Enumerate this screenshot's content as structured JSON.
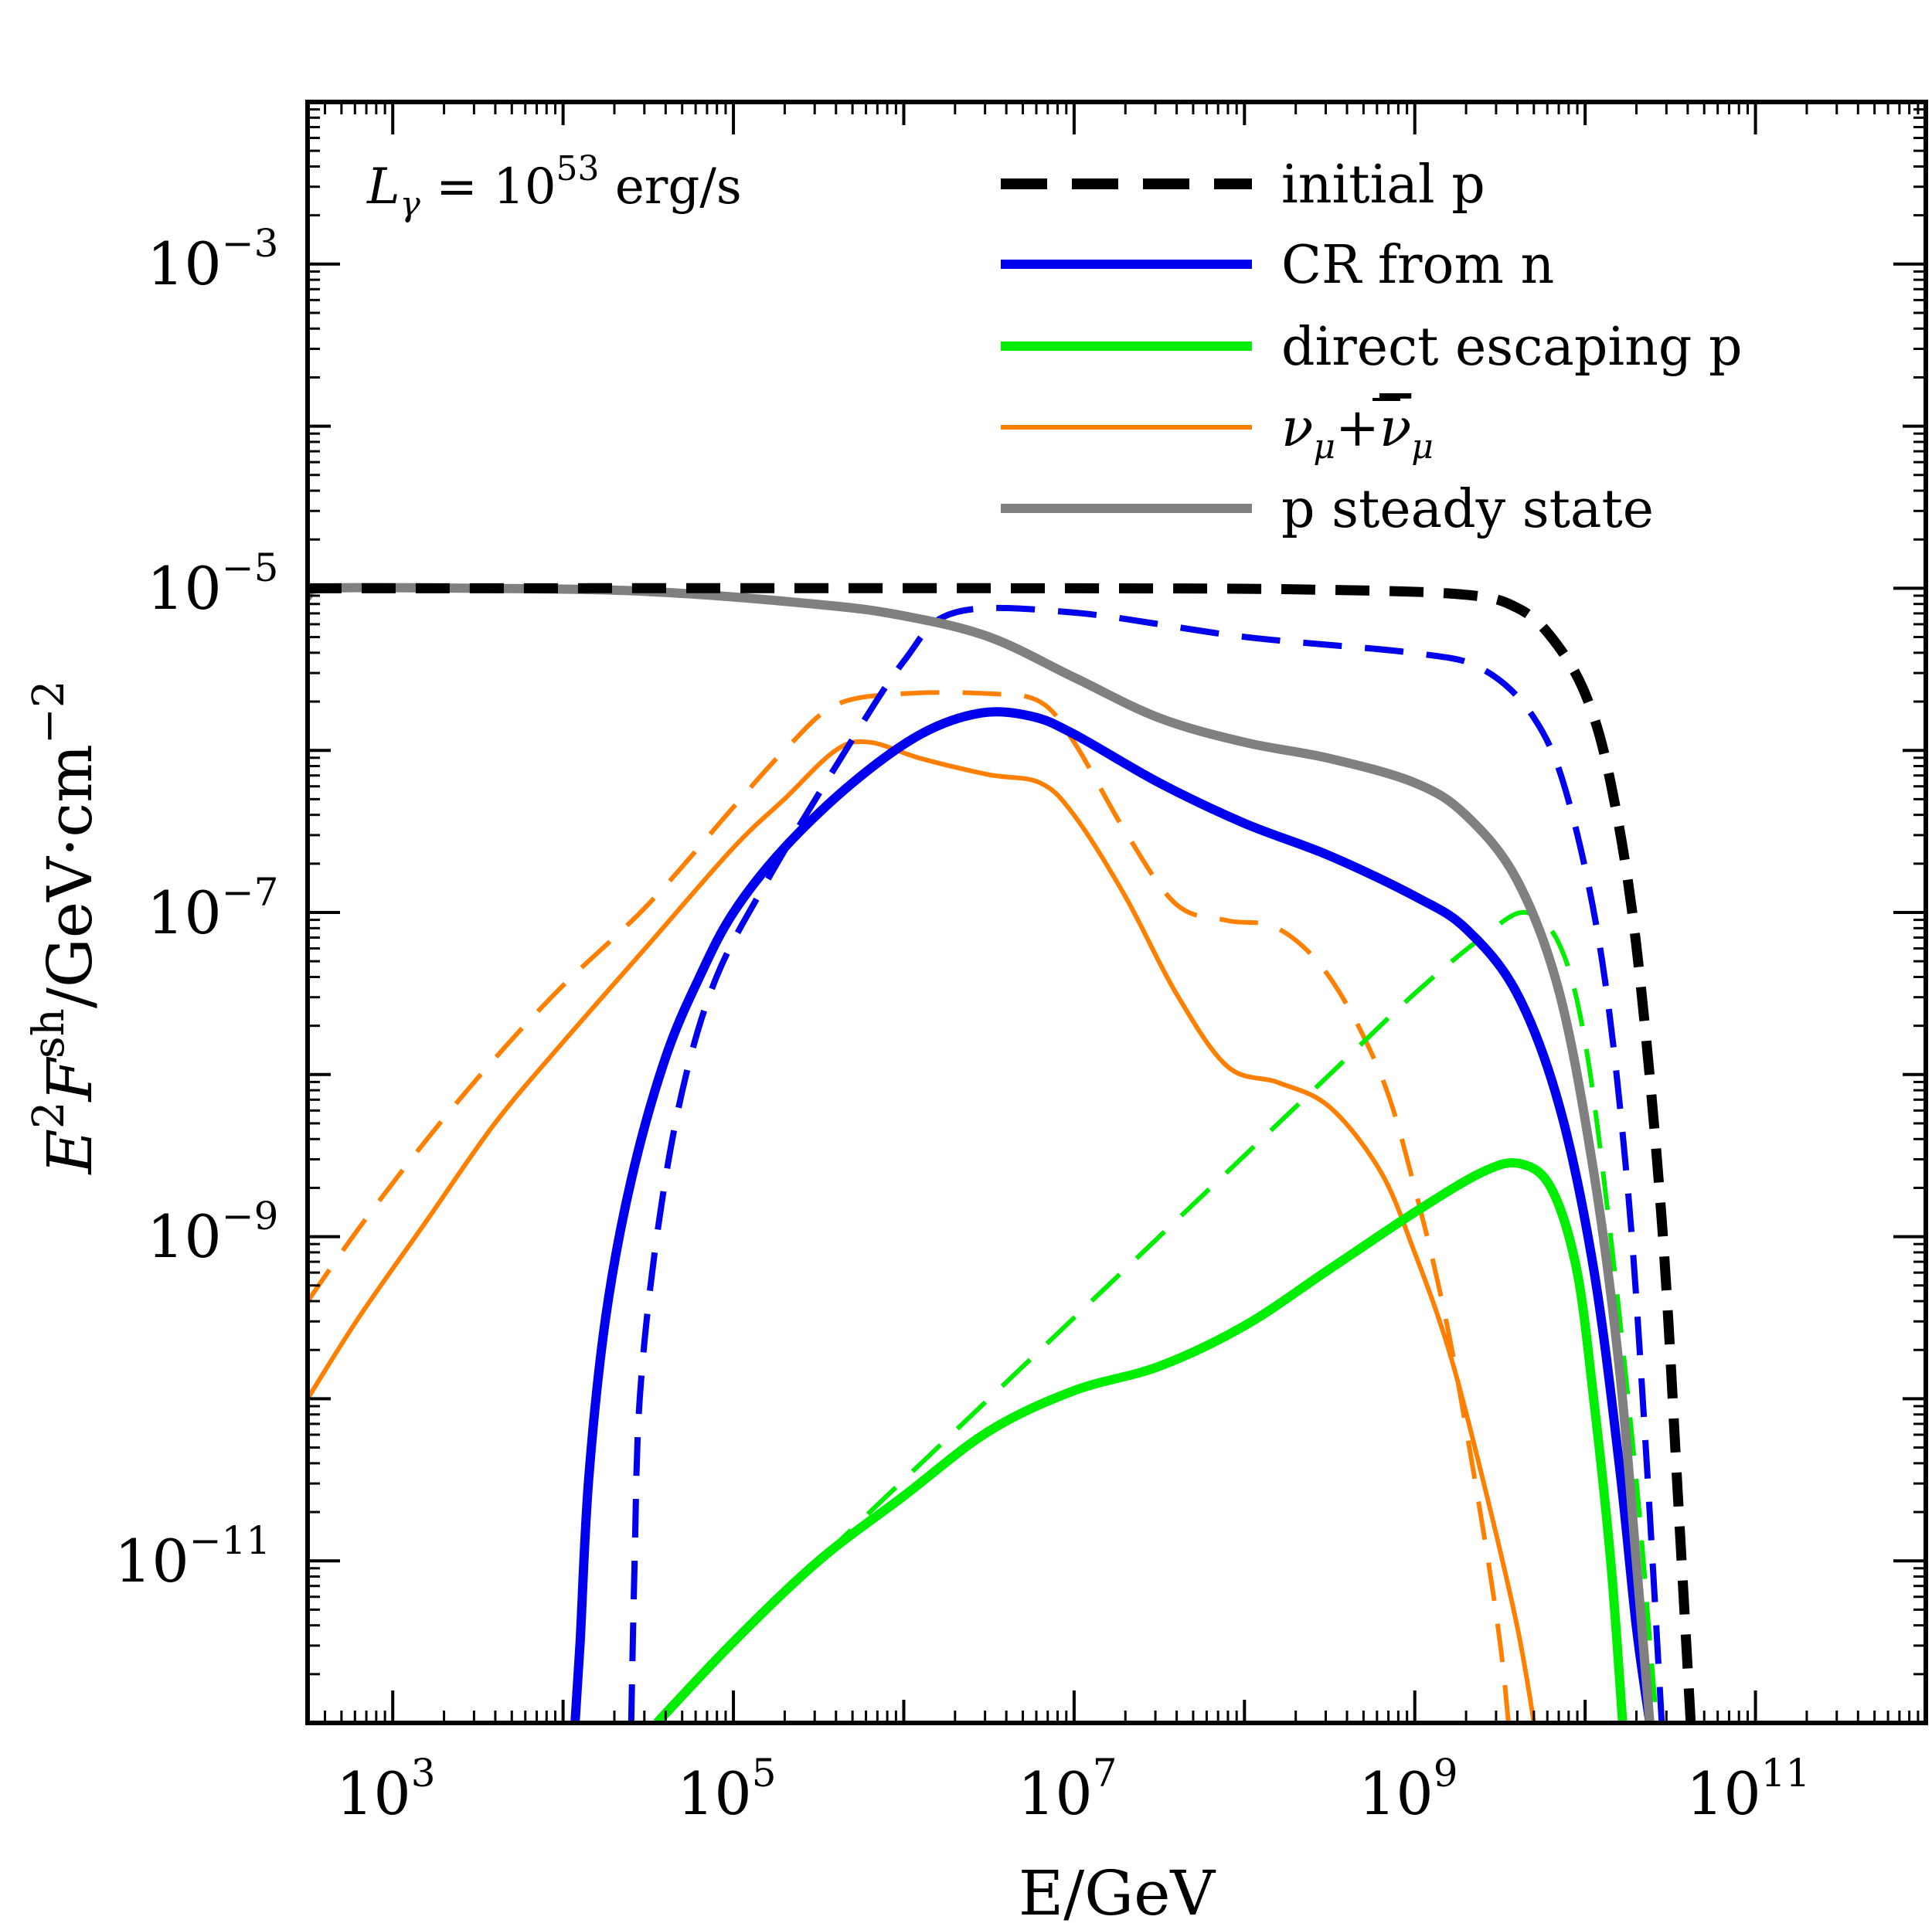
{
  "chart_data": {
    "type": "line",
    "title": "",
    "annotation": {
      "prefix": "L",
      "sub": "γ",
      "mid": " = 10",
      "sup": "53",
      "suffix": " erg/s"
    },
    "xlabel": "E/GeV",
    "ylabel": {
      "a": "E",
      "a_sup": "2",
      "b": "F",
      "b_sup": "sh",
      "c": "/GeV·cm",
      "c_sup": "−2"
    },
    "xscale": "log",
    "yscale": "log",
    "xlim_log10": [
      2.5,
      12.0
    ],
    "ylim_log10": [
      -12.0,
      -2.0
    ],
    "x_ticks": [
      {
        "base": "10",
        "exp": "3",
        "log": 3
      },
      {
        "base": "10",
        "exp": "5",
        "log": 5
      },
      {
        "base": "10",
        "exp": "7",
        "log": 7
      },
      {
        "base": "10",
        "exp": "9",
        "log": 9
      },
      {
        "base": "10",
        "exp": "11",
        "log": 11
      }
    ],
    "y_ticks": [
      {
        "base": "10",
        "exp": "−3",
        "log": -3
      },
      {
        "base": "10",
        "exp": "−5",
        "log": -5
      },
      {
        "base": "10",
        "exp": "−7",
        "log": -7
      },
      {
        "base": "10",
        "exp": "−9",
        "log": -9
      },
      {
        "base": "10",
        "exp": "−11",
        "log": -11
      }
    ],
    "legend_position": "top-right",
    "legend": [
      {
        "label": "initial p",
        "color": "#000000",
        "style": "dashed",
        "width": 14
      },
      {
        "label": "CR from n",
        "color": "#0000ee",
        "style": "solid",
        "width": 12
      },
      {
        "label": "direct escaping p",
        "color": "#00ee00",
        "style": "solid",
        "width": 12
      },
      {
        "label_nu1": "ν",
        "label_sub1": "μ",
        "label_plus": "+",
        "label_nu2": "ν",
        "label_sub2": "μ",
        "color": "#ff8000",
        "style": "solid",
        "width": 6
      },
      {
        "label": "p steady state",
        "color": "#808080",
        "style": "solid",
        "width": 12
      }
    ],
    "series": [
      {
        "name": "initial p",
        "color": "#000000",
        "dash": "44,26",
        "width": 13,
        "points": [
          [
            2.5,
            -5.0
          ],
          [
            7.0,
            -5.0
          ],
          [
            8.5,
            -5.01
          ],
          [
            9.3,
            -5.04
          ],
          [
            9.6,
            -5.12
          ],
          [
            9.8,
            -5.3
          ],
          [
            10.0,
            -5.65
          ],
          [
            10.15,
            -6.2
          ],
          [
            10.3,
            -7.2
          ],
          [
            10.45,
            -8.9
          ],
          [
            10.55,
            -10.7
          ],
          [
            10.62,
            -12.0
          ]
        ]
      },
      {
        "name": "CR from n",
        "color": "#0000ee",
        "dash": "",
        "width": 12,
        "points": [
          [
            4.07,
            -12.0
          ],
          [
            4.1,
            -11.5
          ],
          [
            4.15,
            -10.5
          ],
          [
            4.25,
            -9.5
          ],
          [
            4.4,
            -8.65
          ],
          [
            4.6,
            -7.9
          ],
          [
            4.8,
            -7.4
          ],
          [
            5.0,
            -7.0
          ],
          [
            5.3,
            -6.6
          ],
          [
            5.7,
            -6.2
          ],
          [
            6.1,
            -5.9
          ],
          [
            6.45,
            -5.77
          ],
          [
            6.75,
            -5.79
          ],
          [
            7.0,
            -5.9
          ],
          [
            7.5,
            -6.2
          ],
          [
            8.0,
            -6.45
          ],
          [
            8.5,
            -6.65
          ],
          [
            9.0,
            -6.9
          ],
          [
            9.3,
            -7.1
          ],
          [
            9.6,
            -7.5
          ],
          [
            9.85,
            -8.2
          ],
          [
            10.05,
            -9.2
          ],
          [
            10.2,
            -10.4
          ],
          [
            10.3,
            -11.4
          ],
          [
            10.38,
            -12.0
          ]
        ]
      },
      {
        "name": "CR from n (dashed)",
        "color": "#0000ee",
        "dash": "50,30",
        "width": 8,
        "points": [
          [
            4.4,
            -12.0
          ],
          [
            4.42,
            -11.0
          ],
          [
            4.45,
            -10.0
          ],
          [
            4.55,
            -9.0
          ],
          [
            4.7,
            -8.1
          ],
          [
            4.9,
            -7.4
          ],
          [
            5.2,
            -6.8
          ],
          [
            5.6,
            -6.1
          ],
          [
            6.0,
            -5.45
          ],
          [
            6.3,
            -5.15
          ],
          [
            7.0,
            -5.15
          ],
          [
            8.0,
            -5.3
          ],
          [
            9.0,
            -5.4
          ],
          [
            9.4,
            -5.5
          ],
          [
            9.7,
            -5.8
          ],
          [
            9.9,
            -6.3
          ],
          [
            10.1,
            -7.3
          ],
          [
            10.25,
            -8.7
          ],
          [
            10.35,
            -10.2
          ],
          [
            10.45,
            -12.0
          ]
        ]
      },
      {
        "name": "direct escaping p",
        "color": "#00ee00",
        "dash": "",
        "width": 12,
        "points": [
          [
            4.55,
            -12.0
          ],
          [
            5.0,
            -11.5
          ],
          [
            5.5,
            -11.0
          ],
          [
            6.0,
            -10.6
          ],
          [
            6.5,
            -10.2
          ],
          [
            7.0,
            -9.95
          ],
          [
            7.5,
            -9.8
          ],
          [
            8.0,
            -9.55
          ],
          [
            8.5,
            -9.2
          ],
          [
            9.0,
            -8.85
          ],
          [
            9.4,
            -8.6
          ],
          [
            9.62,
            -8.55
          ],
          [
            9.8,
            -8.7
          ],
          [
            9.95,
            -9.2
          ],
          [
            10.05,
            -10.0
          ],
          [
            10.15,
            -11.0
          ],
          [
            10.22,
            -12.0
          ]
        ]
      },
      {
        "name": "direct escaping p (dashed)",
        "color": "#00ee00",
        "dash": "50,30",
        "width": 6,
        "points": [
          [
            5.0,
            -11.5
          ],
          [
            5.5,
            -11.0
          ],
          [
            6.0,
            -10.5
          ],
          [
            6.5,
            -10.0
          ],
          [
            7.0,
            -9.5
          ],
          [
            7.5,
            -9.0
          ],
          [
            8.0,
            -8.5
          ],
          [
            8.5,
            -8.0
          ],
          [
            9.0,
            -7.5
          ],
          [
            9.4,
            -7.15
          ],
          [
            9.65,
            -7.0
          ],
          [
            9.85,
            -7.2
          ],
          [
            10.0,
            -7.8
          ],
          [
            10.15,
            -9.0
          ],
          [
            10.3,
            -10.5
          ],
          [
            10.38,
            -11.5
          ],
          [
            10.42,
            -12.0
          ]
        ]
      },
      {
        "name": "ν_μ + ν̄_μ",
        "color": "#ff8000",
        "dash": "",
        "width": 6,
        "points": [
          [
            2.5,
            -10.0
          ],
          [
            2.8,
            -9.5
          ],
          [
            3.2,
            -8.9
          ],
          [
            3.6,
            -8.3
          ],
          [
            4.0,
            -7.8
          ],
          [
            4.5,
            -7.2
          ],
          [
            5.0,
            -6.6
          ],
          [
            5.3,
            -6.3
          ],
          [
            5.6,
            -6.0
          ],
          [
            5.8,
            -5.95
          ],
          [
            6.1,
            -6.05
          ],
          [
            6.5,
            -6.15
          ],
          [
            6.8,
            -6.2
          ],
          [
            7.0,
            -6.4
          ],
          [
            7.3,
            -6.9
          ],
          [
            7.6,
            -7.5
          ],
          [
            7.9,
            -7.95
          ],
          [
            8.2,
            -8.05
          ],
          [
            8.5,
            -8.2
          ],
          [
            8.8,
            -8.6
          ],
          [
            9.0,
            -9.1
          ],
          [
            9.2,
            -9.7
          ],
          [
            9.4,
            -10.5
          ],
          [
            9.6,
            -11.4
          ],
          [
            9.7,
            -12.0
          ]
        ]
      },
      {
        "name": "ν_μ + ν̄_μ (dashed)",
        "color": "#ff8000",
        "dash": "50,30",
        "width": 6,
        "points": [
          [
            2.5,
            -9.4
          ],
          [
            2.8,
            -8.95
          ],
          [
            3.2,
            -8.4
          ],
          [
            3.6,
            -7.9
          ],
          [
            4.0,
            -7.45
          ],
          [
            4.5,
            -6.95
          ],
          [
            5.0,
            -6.35
          ],
          [
            5.3,
            -6.0
          ],
          [
            5.6,
            -5.72
          ],
          [
            6.0,
            -5.65
          ],
          [
            6.5,
            -5.65
          ],
          [
            6.8,
            -5.7
          ],
          [
            7.0,
            -5.95
          ],
          [
            7.3,
            -6.5
          ],
          [
            7.6,
            -6.95
          ],
          [
            7.9,
            -7.05
          ],
          [
            8.2,
            -7.1
          ],
          [
            8.5,
            -7.4
          ],
          [
            8.8,
            -8.0
          ],
          [
            9.0,
            -8.7
          ],
          [
            9.2,
            -9.6
          ],
          [
            9.4,
            -10.8
          ],
          [
            9.5,
            -11.5
          ],
          [
            9.55,
            -12.0
          ]
        ]
      },
      {
        "name": "p steady state",
        "color": "#808080",
        "dash": "",
        "width": 12,
        "points": [
          [
            2.5,
            -5.05
          ],
          [
            2.6,
            -5.0
          ],
          [
            3.5,
            -5.0
          ],
          [
            4.5,
            -5.02
          ],
          [
            5.5,
            -5.1
          ],
          [
            6.0,
            -5.17
          ],
          [
            6.5,
            -5.3
          ],
          [
            7.0,
            -5.55
          ],
          [
            7.5,
            -5.8
          ],
          [
            8.0,
            -5.95
          ],
          [
            8.5,
            -6.05
          ],
          [
            9.0,
            -6.2
          ],
          [
            9.3,
            -6.4
          ],
          [
            9.6,
            -6.8
          ],
          [
            9.85,
            -7.5
          ],
          [
            10.05,
            -8.6
          ],
          [
            10.2,
            -9.8
          ],
          [
            10.3,
            -11.0
          ],
          [
            10.38,
            -12.0
          ]
        ]
      }
    ]
  }
}
